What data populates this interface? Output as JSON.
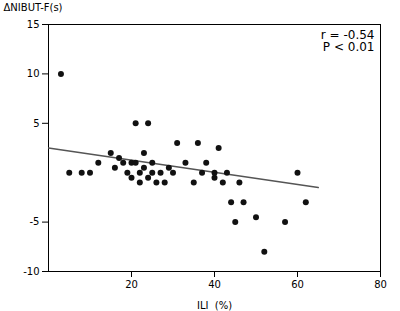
{
  "chart_data": {
    "type": "scatter",
    "x": [
      3,
      5,
      8,
      10,
      12,
      15,
      16,
      17,
      18,
      19,
      20,
      20,
      21,
      21,
      22,
      22,
      23,
      23,
      24,
      24,
      25,
      25,
      26,
      27,
      28,
      29,
      30,
      31,
      33,
      35,
      36,
      37,
      38,
      40,
      40,
      41,
      42,
      43,
      44,
      45,
      46,
      47,
      50,
      52,
      57,
      60,
      62
    ],
    "values": [
      10,
      0,
      0,
      0,
      1,
      2,
      0.5,
      1.5,
      1,
      0,
      -0.5,
      1,
      5,
      1,
      -1,
      0,
      0.5,
      2,
      -0.5,
      5,
      1,
      0,
      -1,
      0,
      -1,
      0.5,
      0,
      3,
      1,
      -1,
      3,
      0,
      1,
      -0.5,
      0,
      2.5,
      -1,
      0,
      -3,
      -5,
      -1,
      -3,
      -4.5,
      -8,
      -5,
      0,
      -3
    ],
    "color": "#111111",
    "regression_line": {
      "type": "line",
      "x": [
        0,
        65
      ],
      "values": [
        2.5,
        -1.5
      ],
      "color": "#555555"
    },
    "xlabel": "ILI  (%)",
    "ylabel": "ΔNIBUT-F(s)",
    "annotation": "r = -0.54\nP < 0.01",
    "xlim": [
      0,
      80
    ],
    "ylim": [
      -10,
      15
    ],
    "xticks": [
      20,
      40,
      60,
      80
    ],
    "yticks": [
      -10,
      -5,
      5,
      10,
      15
    ]
  }
}
